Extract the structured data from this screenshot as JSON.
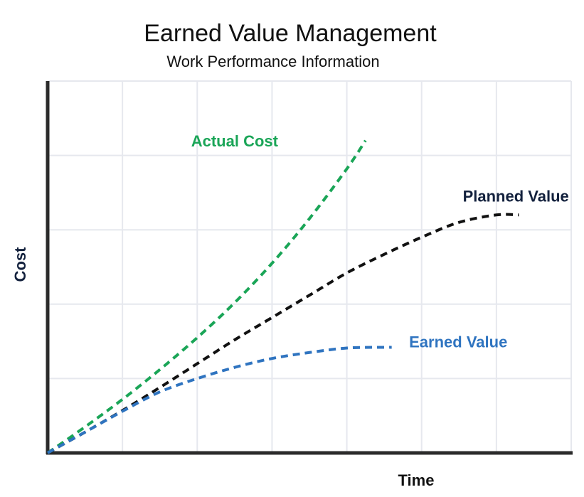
{
  "chart_data": {
    "type": "line",
    "title": "Earned Value Management",
    "subtitle": "Work Performance Information",
    "xlabel": "Time",
    "ylabel": "Cost",
    "grid": true,
    "xlim": [
      0,
      7
    ],
    "ylim": [
      0,
      5
    ],
    "series": [
      {
        "name": "Actual Cost",
        "color": "#1aa557",
        "line_style": "dashed",
        "label_anchor": [
          2.5,
          4.12
        ],
        "points": [
          [
            0,
            0
          ],
          [
            0.5,
            0.35
          ],
          [
            1.0,
            0.72
          ],
          [
            1.5,
            1.12
          ],
          [
            2.0,
            1.55
          ],
          [
            2.5,
            2.02
          ],
          [
            3.0,
            2.55
          ],
          [
            3.5,
            3.15
          ],
          [
            4.0,
            3.82
          ],
          [
            4.25,
            4.2
          ]
        ]
      },
      {
        "name": "Planned Value",
        "color": "#111111",
        "line_style": "dashed",
        "label_anchor": [
          6.26,
          3.38
        ],
        "points": [
          [
            0,
            0
          ],
          [
            0.5,
            0.28
          ],
          [
            1.0,
            0.57
          ],
          [
            1.5,
            0.88
          ],
          [
            2.0,
            1.2
          ],
          [
            2.5,
            1.52
          ],
          [
            3.0,
            1.82
          ],
          [
            3.5,
            2.12
          ],
          [
            4.0,
            2.42
          ],
          [
            4.5,
            2.67
          ],
          [
            5.0,
            2.9
          ],
          [
            5.5,
            3.1
          ],
          [
            6.0,
            3.2
          ],
          [
            6.3,
            3.2
          ]
        ]
      },
      {
        "name": "Earned Value",
        "color": "#2f74c0",
        "line_style": "dashed",
        "label_anchor": [
          5.49,
          1.42
        ],
        "points": [
          [
            0,
            0
          ],
          [
            0.5,
            0.28
          ],
          [
            1.0,
            0.56
          ],
          [
            1.5,
            0.82
          ],
          [
            2.0,
            1.0
          ],
          [
            2.5,
            1.15
          ],
          [
            3.0,
            1.27
          ],
          [
            3.5,
            1.35
          ],
          [
            4.0,
            1.41
          ],
          [
            4.5,
            1.42
          ],
          [
            4.6,
            1.42
          ]
        ]
      }
    ]
  }
}
